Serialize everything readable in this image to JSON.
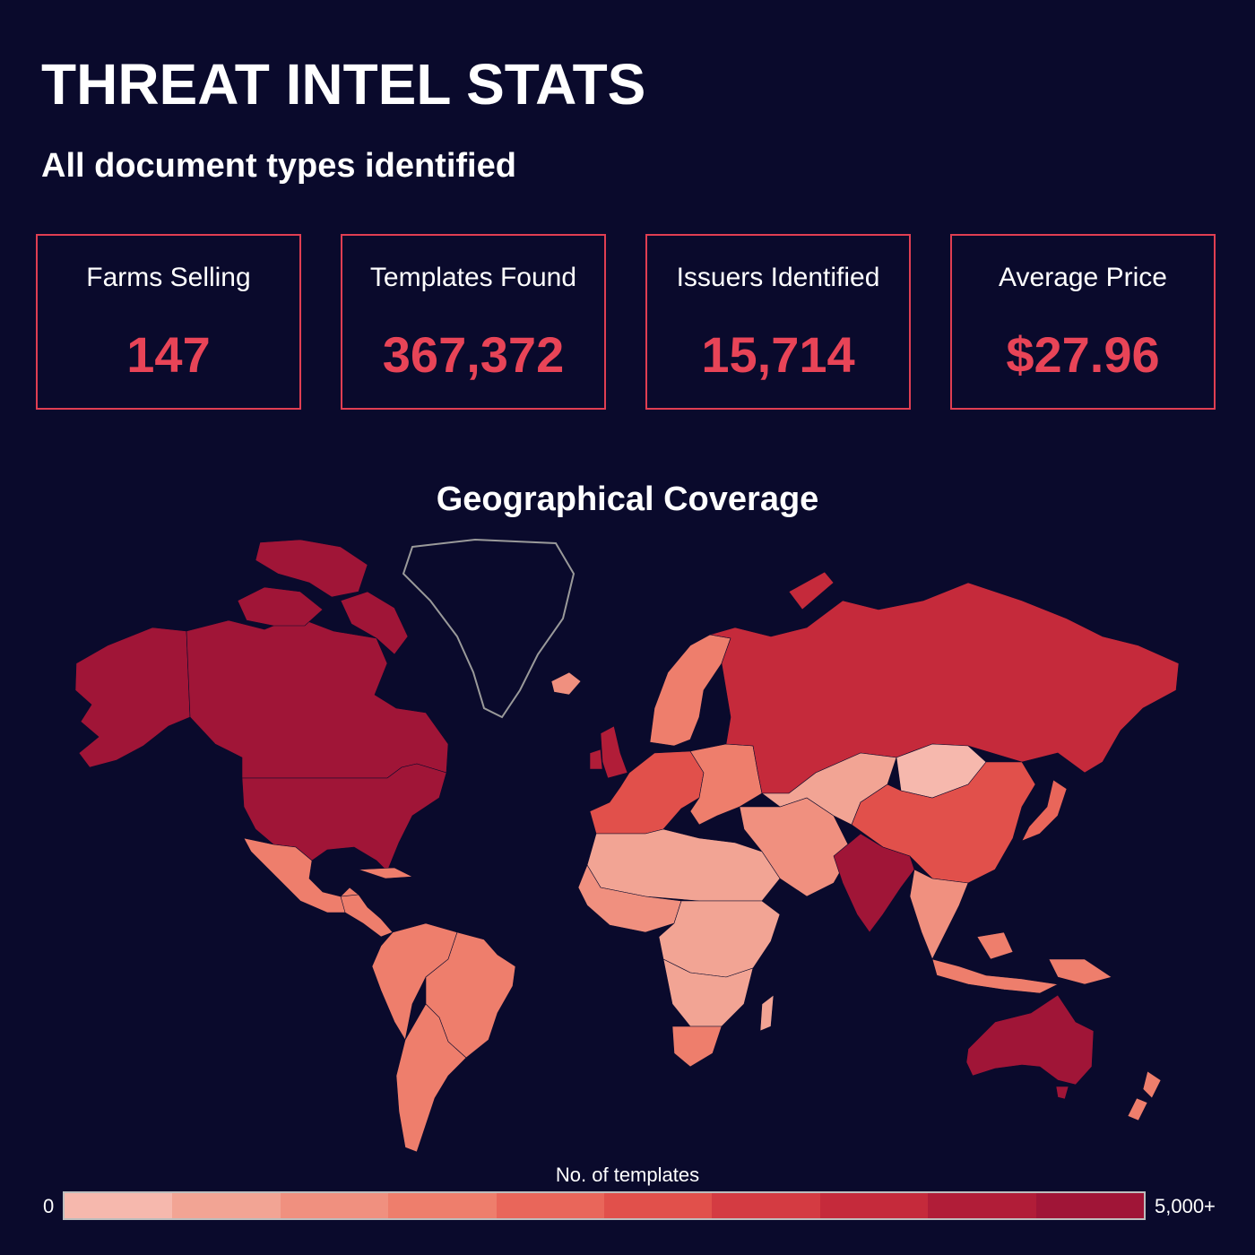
{
  "header": {
    "title": "THREAT INTEL STATS",
    "subtitle": "All document types identified"
  },
  "stats": [
    {
      "label": "Farms Selling",
      "value": "147"
    },
    {
      "label": "Templates Found",
      "value": "367,372"
    },
    {
      "label": "Issuers Identified",
      "value": "15,714"
    },
    {
      "label": "Average Price",
      "value": "$27.96"
    }
  ],
  "map": {
    "title": "Geographical Coverage",
    "legend": {
      "title": "No. of templates",
      "min_label": "0",
      "max_label": "5,000+",
      "scale_colors": [
        "#f6b8ad",
        "#f2a494",
        "#f0907f",
        "#ee7e6c",
        "#e9665a",
        "#e1504b",
        "#d43b42",
        "#c52a3b",
        "#b11d38",
        "#a01537"
      ]
    },
    "regions": [
      {
        "name": "Canada",
        "level": 9
      },
      {
        "name": "United States",
        "level": 9
      },
      {
        "name": "Alaska",
        "level": 9
      },
      {
        "name": "Mexico",
        "level": 3
      },
      {
        "name": "Central America",
        "level": 3
      },
      {
        "name": "Brazil",
        "level": 3
      },
      {
        "name": "Andean South America",
        "level": 3
      },
      {
        "name": "Southern Cone",
        "level": 3
      },
      {
        "name": "Greenland",
        "level": 0
      },
      {
        "name": "Iceland",
        "level": 2
      },
      {
        "name": "United Kingdom",
        "level": 8
      },
      {
        "name": "Western Europe",
        "level": 5
      },
      {
        "name": "Scandinavia",
        "level": 3
      },
      {
        "name": "Eastern Europe",
        "level": 3
      },
      {
        "name": "Russia",
        "level": 7
      },
      {
        "name": "Central Asia",
        "level": 1
      },
      {
        "name": "Mongolia",
        "level": 0
      },
      {
        "name": "China",
        "level": 5
      },
      {
        "name": "Middle East",
        "level": 2
      },
      {
        "name": "India",
        "level": 9
      },
      {
        "name": "Southeast Asia",
        "level": 2
      },
      {
        "name": "Indonesia",
        "level": 3
      },
      {
        "name": "Japan",
        "level": 4
      },
      {
        "name": "North Africa",
        "level": 1
      },
      {
        "name": "West Africa",
        "level": 2
      },
      {
        "name": "Central Africa",
        "level": 1
      },
      {
        "name": "Southern Africa",
        "level": 1
      },
      {
        "name": "South Africa",
        "level": 3
      },
      {
        "name": "Madagascar",
        "level": 1
      },
      {
        "name": "Australia",
        "level": 9
      },
      {
        "name": "New Zealand",
        "level": 3
      }
    ]
  }
}
